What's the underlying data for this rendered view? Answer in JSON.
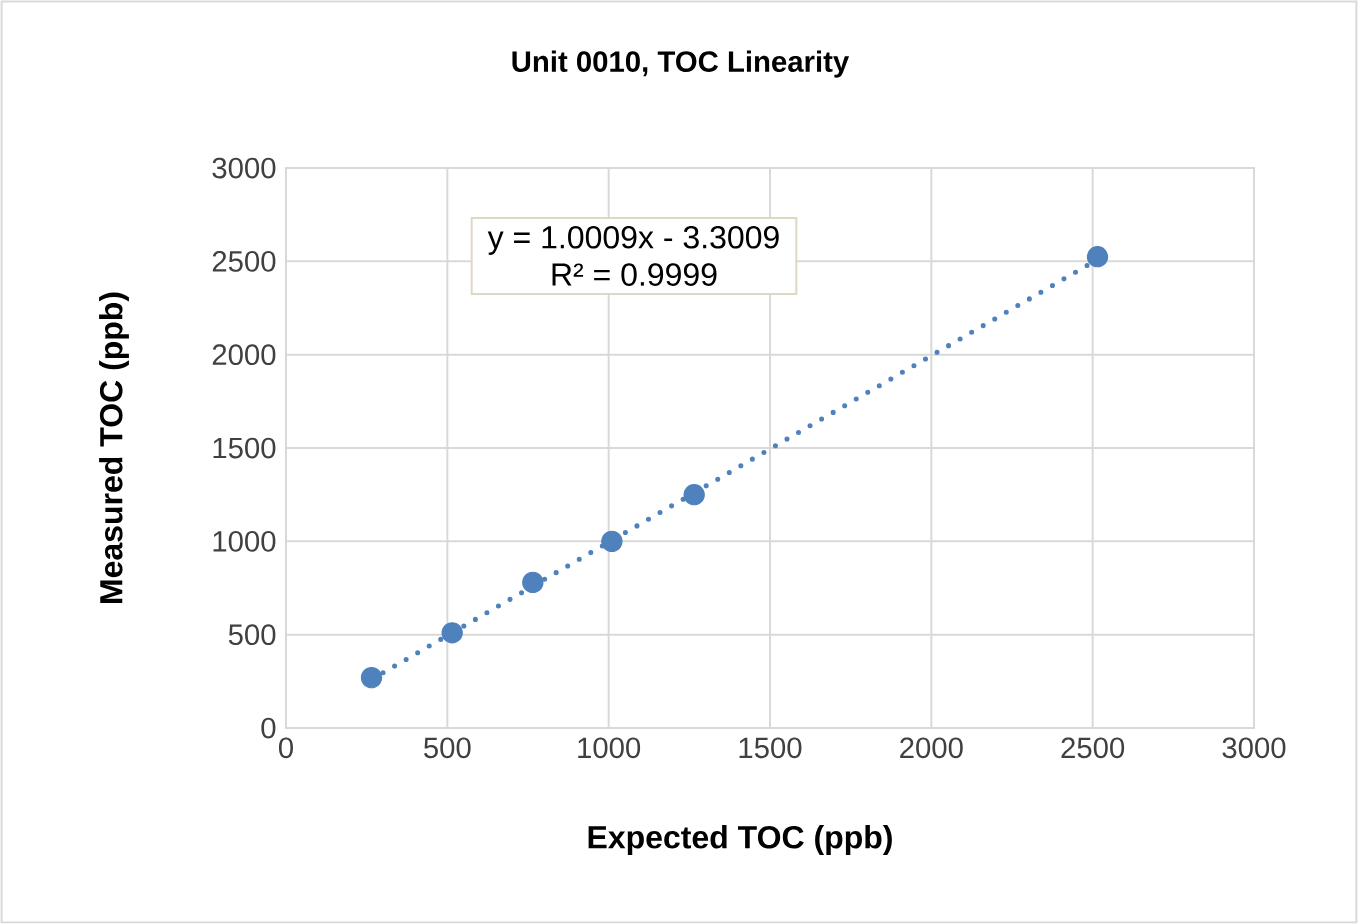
{
  "chart_data": {
    "type": "scatter",
    "title": "Unit 0010, TOC Linearity",
    "xlabel": "Expected TOC (ppb)",
    "ylabel": "Measured TOC (ppb)",
    "annotations": [
      "y = 1.0009x - 3.3009",
      "R² = 0.9999"
    ],
    "xlim": [
      0,
      3000
    ],
    "ylim": [
      0,
      3000
    ],
    "xticks": [
      0,
      500,
      1000,
      1500,
      2000,
      2500,
      3000
    ],
    "yticks": [
      0,
      500,
      1000,
      1500,
      2000,
      2500,
      3000
    ],
    "grid": true,
    "series": [
      {
        "marker": "circle",
        "color": "#4f81bd",
        "x": [
          265,
          515,
          765,
          1010,
          1265,
          2515
        ],
        "values": [
          270,
          510,
          780,
          1000,
          1250,
          2525
        ]
      },
      {
        "type": "line",
        "marker": "none",
        "line_style": "dotted",
        "color": "#4f81bd",
        "x": [
          265,
          2515
        ],
        "values": [
          260,
          2510
        ]
      }
    ]
  }
}
